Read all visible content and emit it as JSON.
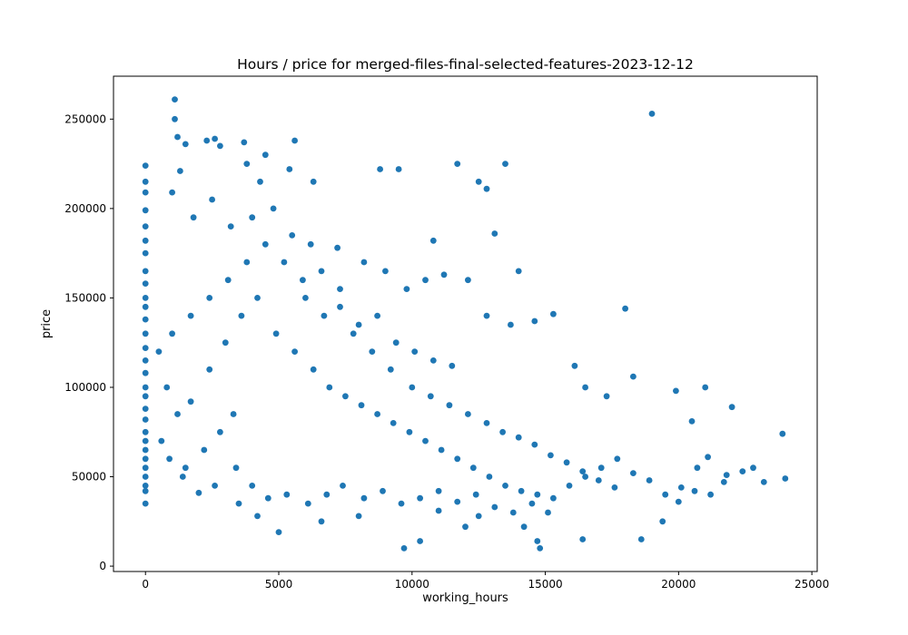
{
  "chart_data": {
    "type": "scatter",
    "title": "Hours / price for merged-files-final-selected-features-2023-12-12",
    "xlabel": "working_hours",
    "ylabel": "price",
    "xlim": [
      -1200,
      25200
    ],
    "ylim": [
      -3000,
      274000
    ],
    "xticks": [
      0,
      5000,
      10000,
      15000,
      20000,
      25000
    ],
    "yticks": [
      0,
      50000,
      100000,
      150000,
      200000,
      250000
    ],
    "grid": false,
    "legend": "none",
    "marker_color": "#1f77b4",
    "series": [
      {
        "points": [
          [
            0,
            224000
          ],
          [
            0,
            215000
          ],
          [
            0,
            209000
          ],
          [
            0,
            199000
          ],
          [
            0,
            190000
          ],
          [
            0,
            182000
          ],
          [
            0,
            175000
          ],
          [
            0,
            165000
          ],
          [
            0,
            158000
          ],
          [
            0,
            150000
          ],
          [
            0,
            145000
          ],
          [
            0,
            138000
          ],
          [
            0,
            130000
          ],
          [
            0,
            122000
          ],
          [
            0,
            115000
          ],
          [
            0,
            108000
          ],
          [
            0,
            100000
          ],
          [
            0,
            95000
          ],
          [
            0,
            88000
          ],
          [
            0,
            82000
          ],
          [
            0,
            75000
          ],
          [
            0,
            70000
          ],
          [
            0,
            65000
          ],
          [
            0,
            60000
          ],
          [
            0,
            55000
          ],
          [
            0,
            50000
          ],
          [
            0,
            45000
          ],
          [
            0,
            42000
          ],
          [
            0,
            35000
          ],
          [
            1100,
            261000
          ],
          [
            1100,
            250000
          ],
          [
            1200,
            240000
          ],
          [
            1300,
            221000
          ],
          [
            1500,
            236000
          ],
          [
            2300,
            238000
          ],
          [
            2600,
            239000
          ],
          [
            2800,
            235000
          ],
          [
            3700,
            237000
          ],
          [
            3800,
            225000
          ],
          [
            4500,
            230000
          ],
          [
            5600,
            238000
          ],
          [
            5400,
            222000
          ],
          [
            4300,
            215000
          ],
          [
            6300,
            215000
          ],
          [
            8800,
            222000
          ],
          [
            9500,
            222000
          ],
          [
            11700,
            225000
          ],
          [
            12500,
            215000
          ],
          [
            12800,
            211000
          ],
          [
            13500,
            225000
          ],
          [
            13100,
            186000
          ],
          [
            14000,
            165000
          ],
          [
            19000,
            253000
          ],
          [
            1000,
            209000
          ],
          [
            1800,
            195000
          ],
          [
            2500,
            205000
          ],
          [
            3200,
            190000
          ],
          [
            4000,
            195000
          ],
          [
            4800,
            200000
          ],
          [
            5500,
            185000
          ],
          [
            6200,
            180000
          ],
          [
            7200,
            178000
          ],
          [
            8200,
            170000
          ],
          [
            9000,
            165000
          ],
          [
            9800,
            155000
          ],
          [
            10500,
            160000
          ],
          [
            10800,
            182000
          ],
          [
            11200,
            163000
          ],
          [
            12100,
            160000
          ],
          [
            12800,
            140000
          ],
          [
            13700,
            135000
          ],
          [
            14600,
            137000
          ],
          [
            15300,
            141000
          ],
          [
            16100,
            112000
          ],
          [
            16500,
            100000
          ],
          [
            17300,
            95000
          ],
          [
            18000,
            144000
          ],
          [
            18300,
            106000
          ],
          [
            19900,
            98000
          ],
          [
            20500,
            81000
          ],
          [
            21000,
            100000
          ],
          [
            22000,
            89000
          ],
          [
            23900,
            74000
          ],
          [
            24000,
            49000
          ],
          [
            23200,
            47000
          ],
          [
            22800,
            55000
          ],
          [
            22400,
            53000
          ],
          [
            21700,
            47000
          ],
          [
            21100,
            61000
          ],
          [
            20700,
            55000
          ],
          [
            20000,
            36000
          ],
          [
            19400,
            25000
          ],
          [
            18600,
            15000
          ],
          [
            16400,
            15000
          ],
          [
            14800,
            10000
          ],
          [
            14700,
            14000
          ],
          [
            14200,
            22000
          ],
          [
            12500,
            28000
          ],
          [
            12000,
            22000
          ],
          [
            11000,
            31000
          ],
          [
            10300,
            14000
          ],
          [
            9700,
            10000
          ],
          [
            8000,
            28000
          ],
          [
            6600,
            25000
          ],
          [
            5000,
            19000
          ],
          [
            4200,
            28000
          ],
          [
            3500,
            35000
          ],
          [
            2000,
            41000
          ],
          [
            1500,
            55000
          ],
          [
            2200,
            65000
          ],
          [
            2800,
            75000
          ],
          [
            3300,
            85000
          ],
          [
            1700,
            92000
          ],
          [
            2400,
            110000
          ],
          [
            3000,
            125000
          ],
          [
            3600,
            140000
          ],
          [
            4200,
            150000
          ],
          [
            4900,
            130000
          ],
          [
            5600,
            120000
          ],
          [
            6300,
            110000
          ],
          [
            6900,
            100000
          ],
          [
            7500,
            95000
          ],
          [
            8100,
            90000
          ],
          [
            8700,
            85000
          ],
          [
            9300,
            80000
          ],
          [
            9900,
            75000
          ],
          [
            10500,
            70000
          ],
          [
            11100,
            65000
          ],
          [
            11700,
            60000
          ],
          [
            12300,
            55000
          ],
          [
            12900,
            50000
          ],
          [
            13500,
            45000
          ],
          [
            14100,
            42000
          ],
          [
            14700,
            40000
          ],
          [
            15300,
            38000
          ],
          [
            15900,
            45000
          ],
          [
            16500,
            50000
          ],
          [
            17100,
            55000
          ],
          [
            17700,
            60000
          ],
          [
            18300,
            52000
          ],
          [
            18900,
            48000
          ],
          [
            19500,
            40000
          ],
          [
            20100,
            44000
          ],
          [
            20600,
            42000
          ],
          [
            21200,
            40000
          ],
          [
            21800,
            51000
          ],
          [
            7800,
            130000
          ],
          [
            8500,
            120000
          ],
          [
            9200,
            110000
          ],
          [
            10000,
            100000
          ],
          [
            10700,
            95000
          ],
          [
            11400,
            90000
          ],
          [
            12100,
            85000
          ],
          [
            12800,
            80000
          ],
          [
            13400,
            75000
          ],
          [
            14000,
            72000
          ],
          [
            14600,
            68000
          ],
          [
            15200,
            62000
          ],
          [
            15800,
            58000
          ],
          [
            16400,
            53000
          ],
          [
            17000,
            48000
          ],
          [
            17600,
            44000
          ],
          [
            6000,
            150000
          ],
          [
            6700,
            140000
          ],
          [
            7300,
            145000
          ],
          [
            8000,
            135000
          ],
          [
            8700,
            140000
          ],
          [
            9400,
            125000
          ],
          [
            10100,
            120000
          ],
          [
            10800,
            115000
          ],
          [
            11500,
            112000
          ],
          [
            5200,
            170000
          ],
          [
            5900,
            160000
          ],
          [
            6600,
            165000
          ],
          [
            7300,
            155000
          ],
          [
            4500,
            180000
          ],
          [
            3800,
            170000
          ],
          [
            3100,
            160000
          ],
          [
            2400,
            150000
          ],
          [
            1700,
            140000
          ],
          [
            1000,
            130000
          ],
          [
            500,
            120000
          ],
          [
            800,
            100000
          ],
          [
            1200,
            85000
          ],
          [
            600,
            70000
          ],
          [
            900,
            60000
          ],
          [
            1400,
            50000
          ],
          [
            2600,
            45000
          ],
          [
            3400,
            55000
          ],
          [
            4000,
            45000
          ],
          [
            4600,
            38000
          ],
          [
            5300,
            40000
          ],
          [
            6100,
            35000
          ],
          [
            6800,
            40000
          ],
          [
            7400,
            45000
          ],
          [
            8200,
            38000
          ],
          [
            8900,
            42000
          ],
          [
            9600,
            35000
          ],
          [
            10300,
            38000
          ],
          [
            11000,
            42000
          ],
          [
            11700,
            36000
          ],
          [
            12400,
            40000
          ],
          [
            13100,
            33000
          ],
          [
            13800,
            30000
          ],
          [
            14500,
            35000
          ],
          [
            15100,
            30000
          ]
        ]
      }
    ]
  }
}
